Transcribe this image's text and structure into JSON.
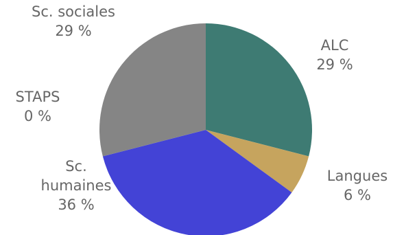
{
  "chart_data": {
    "type": "pie",
    "start_angle_deg": 0,
    "direction": "clockwise",
    "slices": [
      {
        "label": "ALC",
        "label_lines": [
          "ALC"
        ],
        "value": 29,
        "value_text": "29 %",
        "color": "#3E7B73"
      },
      {
        "label": "Langues",
        "label_lines": [
          "Langues"
        ],
        "value": 6,
        "value_text": "6 %",
        "color": "#C6A45E"
      },
      {
        "label": "Sc. humaines",
        "label_lines": [
          "Sc.",
          "humaines"
        ],
        "value": 36,
        "value_text": "36 %",
        "color": "#4343D6"
      },
      {
        "label": "STAPS",
        "label_lines": [
          "STAPS"
        ],
        "value": 0,
        "value_text": "0 %",
        "color": "#B0B0B0"
      },
      {
        "label": "Sc. sociales",
        "label_lines": [
          "Sc. sociales"
        ],
        "value": 29,
        "value_text": "29 %",
        "color": "#858585"
      }
    ]
  }
}
